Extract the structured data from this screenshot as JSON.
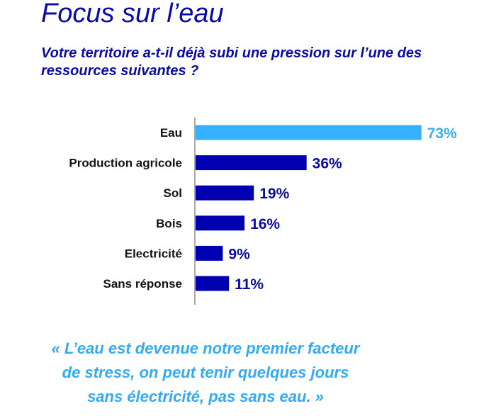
{
  "header": {
    "title": "Focus sur l’eau",
    "question": "Votre territoire a-t-il déjà subi une pression sur l’une des ressources suivantes ?"
  },
  "chart_data": {
    "type": "bar",
    "orientation": "horizontal",
    "categories": [
      "Eau",
      "Production agricole",
      "Sol",
      "Bois",
      "Electricité",
      "Sans réponse"
    ],
    "values": [
      73,
      36,
      19,
      16,
      9,
      11
    ],
    "labels": [
      "73%",
      "36%",
      "19%",
      "16%",
      "9%",
      "11%"
    ],
    "colors": [
      "#36b0ff",
      "#0000b0",
      "#0000b0",
      "#0000b0",
      "#0000b0",
      "#0000b0"
    ],
    "label_colors": [
      "#36b0ff",
      "#0a0aa8",
      "#0a0aa8",
      "#0a0aa8",
      "#0a0aa8",
      "#0a0aa8"
    ],
    "xlim": [
      0,
      100
    ],
    "grid": false
  },
  "quote": {
    "lines": [
      "« L’eau est devenue notre premier facteur",
      "de stress, on peut tenir quelques jours",
      "sans électricité, pas sans eau. »"
    ]
  }
}
